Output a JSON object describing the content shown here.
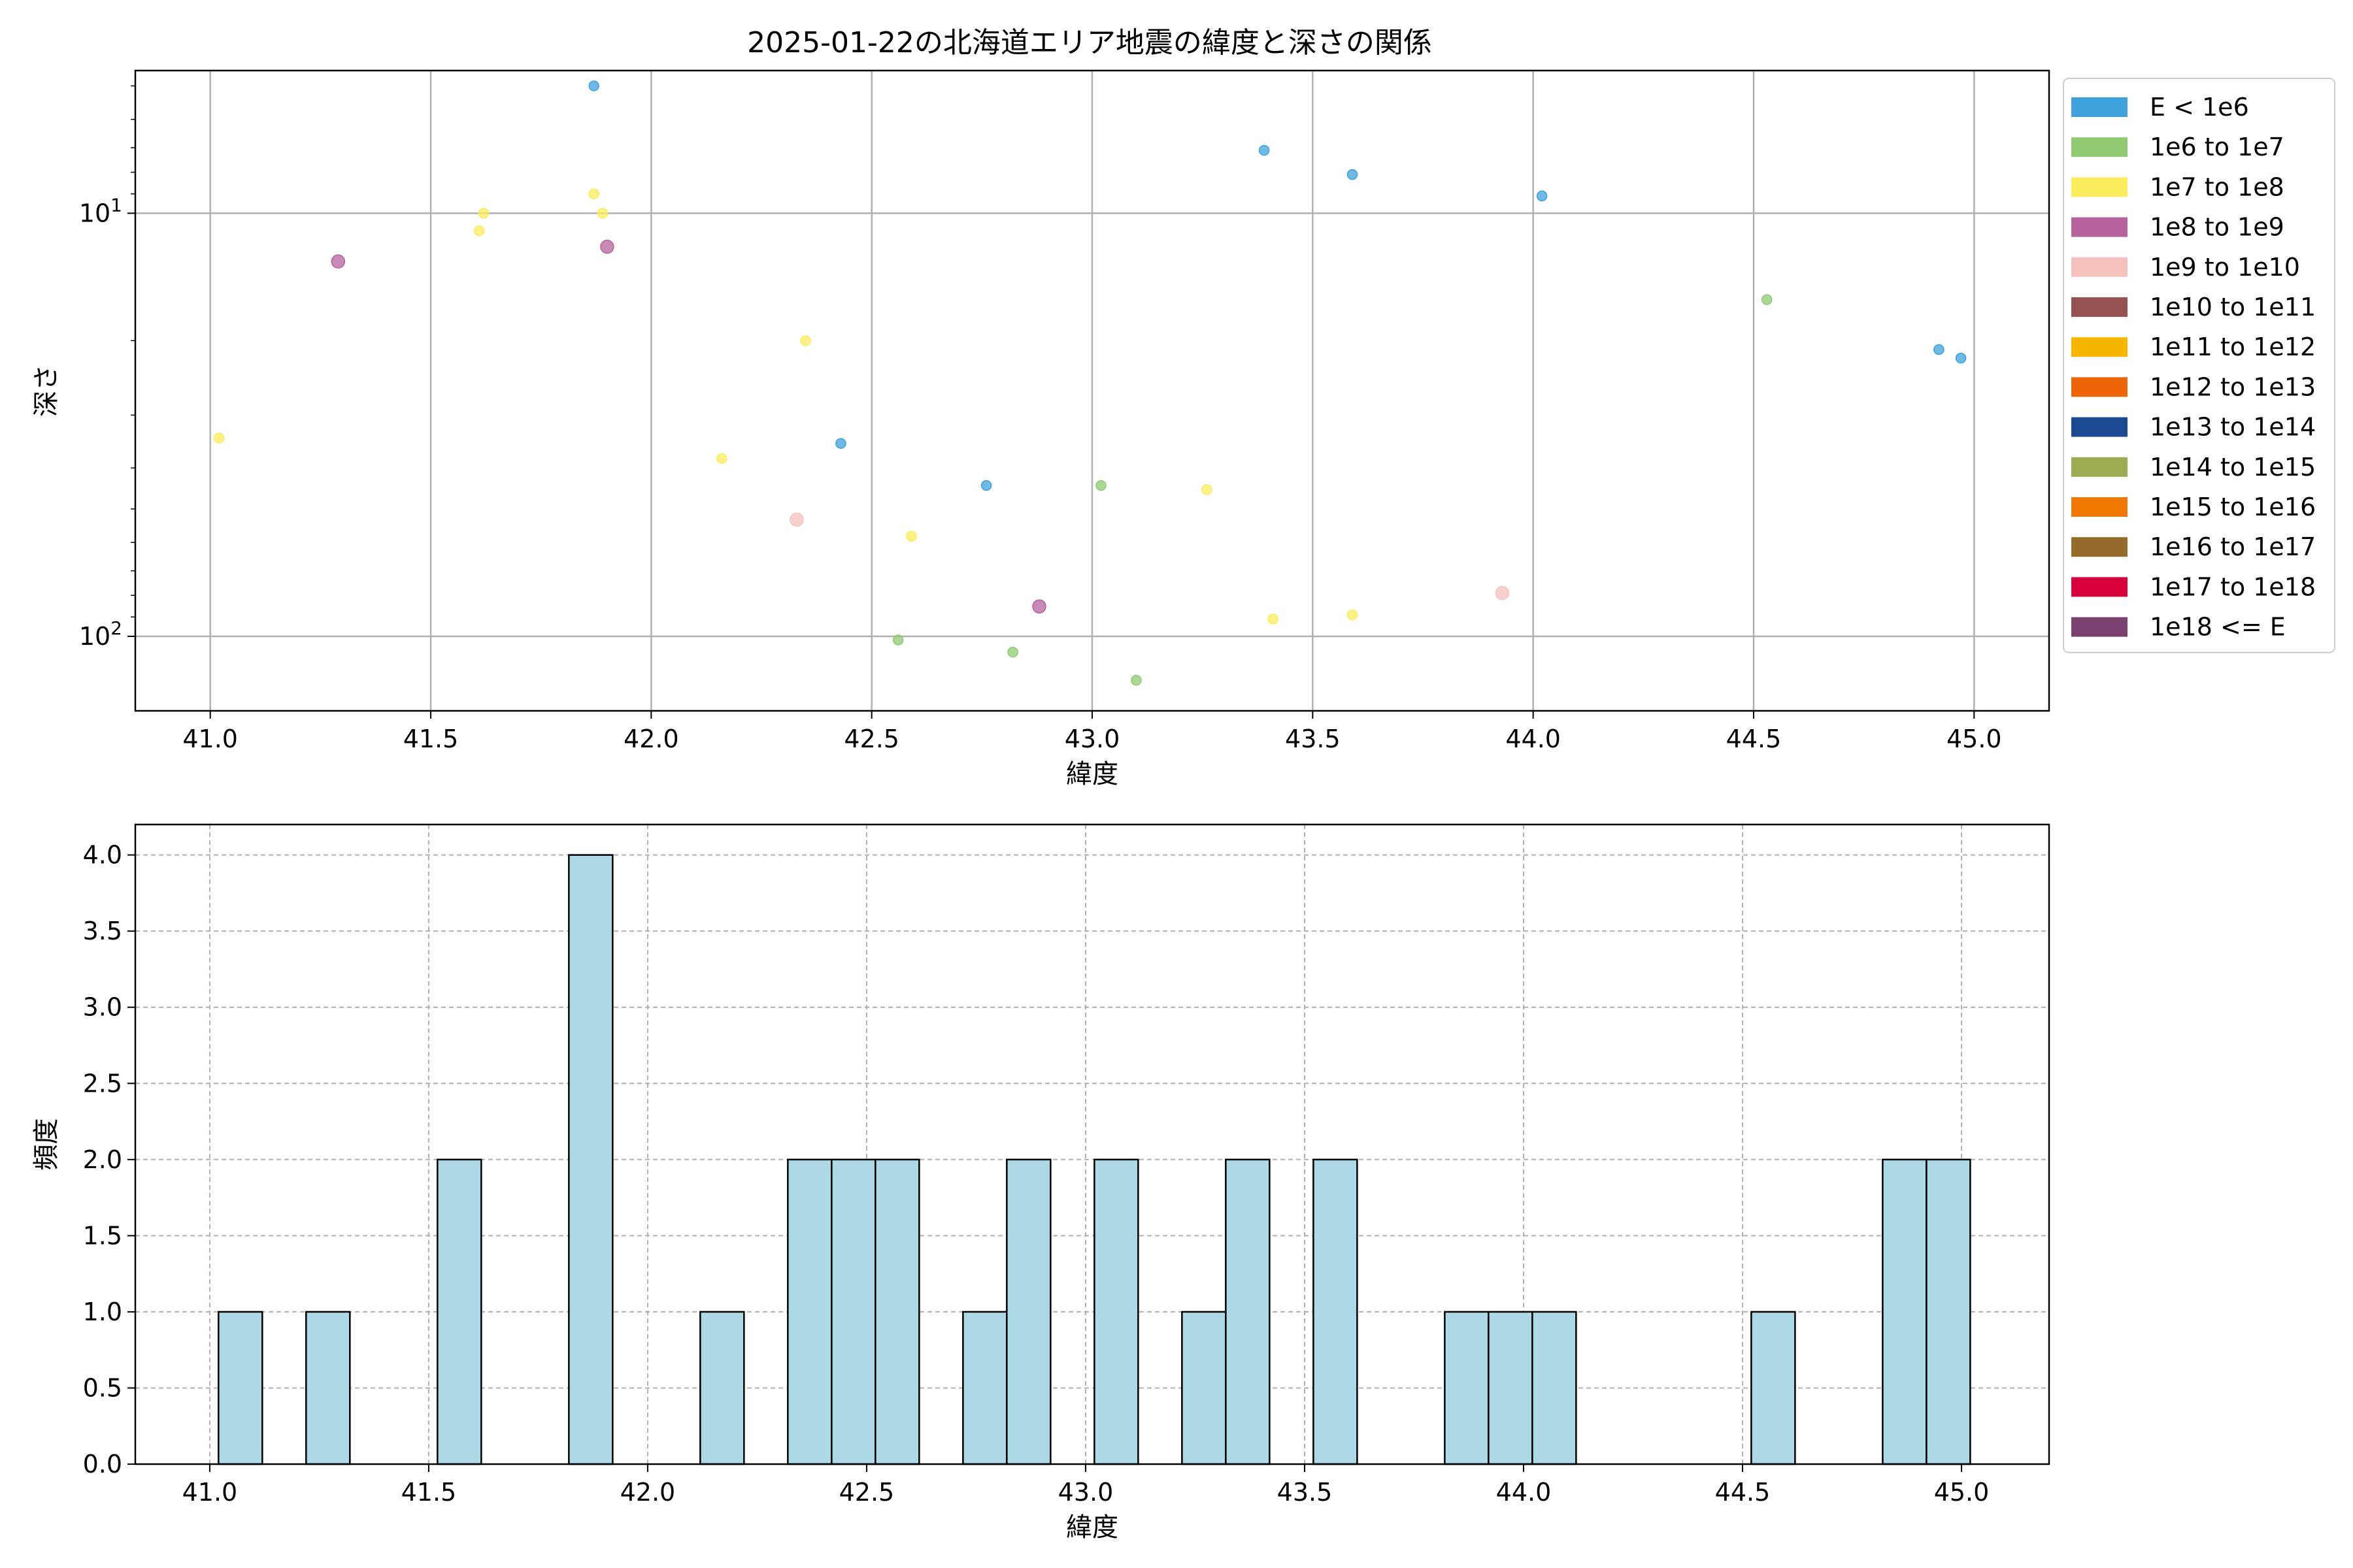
{
  "chart_data": [
    {
      "type": "scatter",
      "title": "2025-01-22の北海道エリア地震の緯度と深さの関係",
      "xlabel": "緯度",
      "ylabel": "深さ",
      "xlim": [
        40.83,
        45.17
      ],
      "ylim": [
        4.6,
        150
      ],
      "yscale": "log",
      "yinverted": true,
      "xticks": [
        "41.0",
        "41.5",
        "42.0",
        "42.5",
        "43.0",
        "43.5",
        "44.0",
        "44.5",
        "45.0"
      ],
      "yticks": [
        {
          "value": 10,
          "base": "10",
          "exp": "1"
        },
        {
          "value": 100,
          "base": "10",
          "exp": "2"
        }
      ],
      "grid": true,
      "legend_position": "outside-right",
      "legend": [
        {
          "label": "E < 1e6",
          "color": "#3fa2dd"
        },
        {
          "label": "1e6 to 1e7",
          "color": "#8fca72"
        },
        {
          "label": "1e7 to 1e8",
          "color": "#fbec5d"
        },
        {
          "label": "1e8 to 1e9",
          "color": "#b5629d"
        },
        {
          "label": "1e9 to 1e10",
          "color": "#f5c2bd"
        },
        {
          "label": "1e10 to 1e11",
          "color": "#965250"
        },
        {
          "label": "1e11 to 1e12",
          "color": "#f8b500"
        },
        {
          "label": "1e12 to 1e13",
          "color": "#ee6508"
        },
        {
          "label": "1e13 to 1e14",
          "color": "#1c4a92"
        },
        {
          "label": "1e14 to 1e15",
          "color": "#9dab52"
        },
        {
          "label": "1e15 to 1e16",
          "color": "#ee7800"
        },
        {
          "label": "1e16 to 1e17",
          "color": "#956b2c"
        },
        {
          "label": "1e17 to 1e18",
          "color": "#d7003a"
        },
        {
          "label": "1e18 <= E",
          "color": "#7a4171"
        }
      ],
      "points": [
        {
          "x": 41.87,
          "y": 5.0,
          "cls": 0
        },
        {
          "x": 43.39,
          "y": 7.1,
          "cls": 0
        },
        {
          "x": 43.59,
          "y": 8.1,
          "cls": 0
        },
        {
          "x": 44.02,
          "y": 9.1,
          "cls": 0
        },
        {
          "x": 44.92,
          "y": 21.0,
          "cls": 0
        },
        {
          "x": 44.97,
          "y": 22.0,
          "cls": 0
        },
        {
          "x": 42.43,
          "y": 35.0,
          "cls": 0
        },
        {
          "x": 42.76,
          "y": 44.0,
          "cls": 0
        },
        {
          "x": 44.53,
          "y": 16.0,
          "cls": 1
        },
        {
          "x": 43.02,
          "y": 44.0,
          "cls": 1
        },
        {
          "x": 42.56,
          "y": 102.0,
          "cls": 1
        },
        {
          "x": 42.82,
          "y": 109.0,
          "cls": 1
        },
        {
          "x": 43.1,
          "y": 127.0,
          "cls": 1
        },
        {
          "x": 41.87,
          "y": 9.0,
          "cls": 2
        },
        {
          "x": 41.62,
          "y": 10.0,
          "cls": 2
        },
        {
          "x": 41.89,
          "y": 10.0,
          "cls": 2
        },
        {
          "x": 41.61,
          "y": 11.0,
          "cls": 2
        },
        {
          "x": 42.35,
          "y": 20.0,
          "cls": 2
        },
        {
          "x": 41.02,
          "y": 34.0,
          "cls": 2
        },
        {
          "x": 42.16,
          "y": 38.0,
          "cls": 2
        },
        {
          "x": 43.26,
          "y": 45.0,
          "cls": 2
        },
        {
          "x": 42.59,
          "y": 58.0,
          "cls": 2
        },
        {
          "x": 43.41,
          "y": 91.0,
          "cls": 2
        },
        {
          "x": 43.59,
          "y": 89.0,
          "cls": 2
        },
        {
          "x": 41.29,
          "y": 13.0,
          "cls": 3
        },
        {
          "x": 41.9,
          "y": 12.0,
          "cls": 3
        },
        {
          "x": 42.88,
          "y": 85.0,
          "cls": 3
        },
        {
          "x": 42.33,
          "y": 53.0,
          "cls": 4
        },
        {
          "x": 43.93,
          "y": 79.0,
          "cls": 4
        }
      ]
    },
    {
      "type": "bar",
      "title": "",
      "xlabel": "緯度",
      "ylabel": "頻度",
      "xlim": [
        40.83,
        45.2
      ],
      "ylim": [
        0,
        4.2
      ],
      "xticks": [
        "41.0",
        "41.5",
        "42.0",
        "42.5",
        "43.0",
        "43.5",
        "44.0",
        "44.5",
        "45.0"
      ],
      "yticks": [
        "0.0",
        "0.5",
        "1.0",
        "1.5",
        "2.0",
        "2.5",
        "3.0",
        "3.5",
        "4.0"
      ],
      "grid": true,
      "bar_color": "#add8e6",
      "bins": [
        {
          "x0": 41.02,
          "x1": 41.12,
          "count": 1
        },
        {
          "x0": 41.22,
          "x1": 41.32,
          "count": 1
        },
        {
          "x0": 41.52,
          "x1": 41.62,
          "count": 2
        },
        {
          "x0": 41.82,
          "x1": 41.92,
          "count": 4
        },
        {
          "x0": 42.12,
          "x1": 42.22,
          "count": 1
        },
        {
          "x0": 42.32,
          "x1": 42.42,
          "count": 2
        },
        {
          "x0": 42.42,
          "x1": 42.52,
          "count": 2
        },
        {
          "x0": 42.52,
          "x1": 42.62,
          "count": 2
        },
        {
          "x0": 42.72,
          "x1": 42.82,
          "count": 1
        },
        {
          "x0": 42.82,
          "x1": 42.92,
          "count": 2
        },
        {
          "x0": 43.02,
          "x1": 43.12,
          "count": 2
        },
        {
          "x0": 43.22,
          "x1": 43.32,
          "count": 1
        },
        {
          "x0": 43.32,
          "x1": 43.42,
          "count": 2
        },
        {
          "x0": 43.52,
          "x1": 43.62,
          "count": 2
        },
        {
          "x0": 43.82,
          "x1": 43.92,
          "count": 1
        },
        {
          "x0": 43.92,
          "x1": 44.02,
          "count": 1
        },
        {
          "x0": 44.02,
          "x1": 44.12,
          "count": 1
        },
        {
          "x0": 44.52,
          "x1": 44.62,
          "count": 1
        },
        {
          "x0": 44.82,
          "x1": 44.92,
          "count": 2
        },
        {
          "x0": 44.92,
          "x1": 45.02,
          "count": 2
        }
      ]
    }
  ]
}
